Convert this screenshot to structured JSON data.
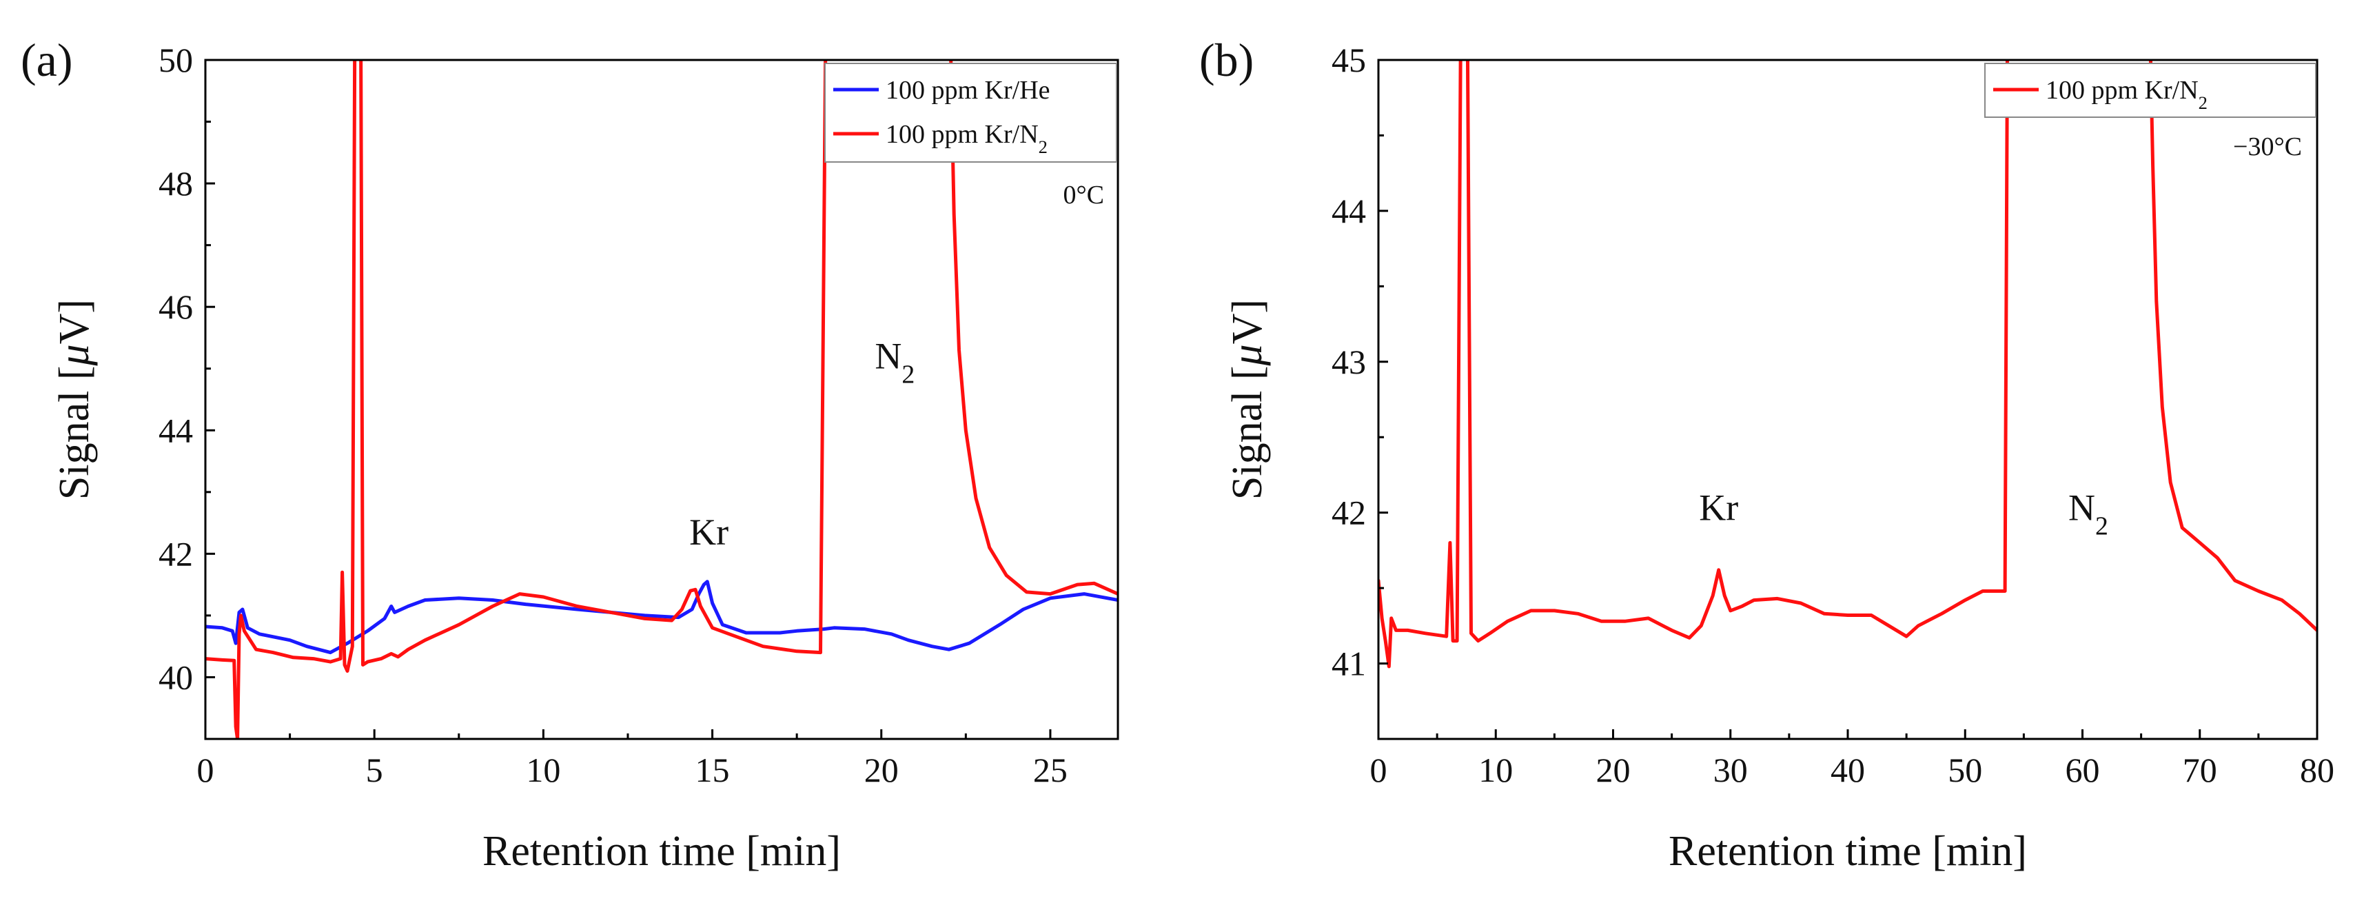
{
  "chart_data": [
    {
      "type": "line",
      "panel_label": "(a)",
      "xlabel": "Retention time [min]",
      "ylabel_prefix": "Signal [",
      "ylabel_mu": "μ",
      "ylabel_suffix": "V]",
      "xlim": [
        0,
        27
      ],
      "ylim": [
        39,
        50
      ],
      "xticks": [
        0,
        5,
        10,
        15,
        20,
        25
      ],
      "yticks": [
        40,
        42,
        44,
        46,
        48,
        50
      ],
      "condition": "0°C",
      "legend_position": "top-right",
      "series": [
        {
          "name": "100 ppm Kr/He",
          "legend_main": "100 ppm Kr/He",
          "legend_sub": "",
          "color": "#1a1aff",
          "points": [
            [
              0,
              40.82
            ],
            [
              0.5,
              40.8
            ],
            [
              0.8,
              40.75
            ],
            [
              0.9,
              40.55
            ],
            [
              1.0,
              41.05
            ],
            [
              1.1,
              41.1
            ],
            [
              1.25,
              40.8
            ],
            [
              1.6,
              40.7
            ],
            [
              2.5,
              40.6
            ],
            [
              3.0,
              40.5
            ],
            [
              3.7,
              40.4
            ],
            [
              4.2,
              40.55
            ],
            [
              4.8,
              40.75
            ],
            [
              5.3,
              40.95
            ],
            [
              5.5,
              41.15
            ],
            [
              5.6,
              41.05
            ],
            [
              6.0,
              41.15
            ],
            [
              6.5,
              41.25
            ],
            [
              7.5,
              41.28
            ],
            [
              8.5,
              41.25
            ],
            [
              9.5,
              41.18
            ],
            [
              11,
              41.1
            ],
            [
              12,
              41.05
            ],
            [
              13,
              41.0
            ],
            [
              14,
              40.97
            ],
            [
              14.4,
              41.1
            ],
            [
              14.6,
              41.35
            ],
            [
              14.75,
              41.5
            ],
            [
              14.85,
              41.55
            ],
            [
              15.0,
              41.2
            ],
            [
              15.3,
              40.85
            ],
            [
              16,
              40.72
            ],
            [
              17,
              40.72
            ],
            [
              17.5,
              40.75
            ],
            [
              18.3,
              40.78
            ],
            [
              18.6,
              40.8
            ],
            [
              19.5,
              40.78
            ],
            [
              20.3,
              40.7
            ],
            [
              20.8,
              40.6
            ],
            [
              21.5,
              40.5
            ],
            [
              22.0,
              40.45
            ],
            [
              22.6,
              40.55
            ],
            [
              23.5,
              40.85
            ],
            [
              24.2,
              41.1
            ],
            [
              25,
              41.28
            ],
            [
              26,
              41.35
            ],
            [
              27,
              41.25
            ]
          ]
        },
        {
          "name": "100 ppm Kr/N2",
          "legend_main": "100 ppm Kr/N",
          "legend_sub": "2",
          "color": "#ff1010",
          "points": [
            [
              0,
              40.3
            ],
            [
              0.5,
              40.28
            ],
            [
              0.85,
              40.27
            ],
            [
              0.9,
              39.2
            ],
            [
              0.95,
              39.0
            ],
            [
              1.0,
              40.7
            ],
            [
              1.05,
              41.0
            ],
            [
              1.15,
              40.75
            ],
            [
              1.5,
              40.45
            ],
            [
              2.0,
              40.4
            ],
            [
              2.6,
              40.32
            ],
            [
              3.2,
              40.3
            ],
            [
              3.7,
              40.25
            ],
            [
              4.0,
              40.3
            ],
            [
              4.05,
              41.7
            ],
            [
              4.12,
              40.2
            ],
            [
              4.2,
              40.1
            ],
            [
              4.35,
              40.5
            ],
            [
              4.42,
              50.2
            ],
            [
              4.6,
              50.2
            ],
            [
              4.66,
              40.2
            ],
            [
              4.8,
              40.25
            ],
            [
              5.2,
              40.3
            ],
            [
              5.5,
              40.38
            ],
            [
              5.7,
              40.33
            ],
            [
              6.0,
              40.45
            ],
            [
              6.5,
              40.6
            ],
            [
              7.5,
              40.85
            ],
            [
              8.5,
              41.15
            ],
            [
              9.3,
              41.35
            ],
            [
              10,
              41.3
            ],
            [
              11,
              41.15
            ],
            [
              12,
              41.05
            ],
            [
              13,
              40.95
            ],
            [
              13.8,
              40.92
            ],
            [
              14.1,
              41.1
            ],
            [
              14.35,
              41.4
            ],
            [
              14.5,
              41.42
            ],
            [
              14.65,
              41.15
            ],
            [
              15,
              40.8
            ],
            [
              15.5,
              40.7
            ],
            [
              16.5,
              40.5
            ],
            [
              17.5,
              40.42
            ],
            [
              18.2,
              40.4
            ],
            [
              18.35,
              50.2
            ],
            [
              22.05,
              50.2
            ],
            [
              22.15,
              47.5
            ],
            [
              22.3,
              45.3
            ],
            [
              22.5,
              44.0
            ],
            [
              22.8,
              42.9
            ],
            [
              23.2,
              42.1
            ],
            [
              23.7,
              41.65
            ],
            [
              24.3,
              41.38
            ],
            [
              25,
              41.35
            ],
            [
              25.8,
              41.5
            ],
            [
              26.3,
              41.52
            ],
            [
              27,
              41.35
            ]
          ]
        }
      ],
      "annotations": [
        {
          "text": "Kr",
          "sub": "",
          "x": 14.9,
          "y": 42.15
        },
        {
          "text": "N",
          "sub": "2",
          "x": 20.4,
          "y": 45.0
        }
      ]
    },
    {
      "type": "line",
      "panel_label": "(b)",
      "xlabel": "Retention time [min]",
      "ylabel_prefix": "Signal [",
      "ylabel_mu": "μ",
      "ylabel_suffix": "V]",
      "xlim": [
        0,
        80
      ],
      "ylim": [
        40.5,
        45
      ],
      "xticks": [
        0,
        10,
        20,
        30,
        40,
        50,
        60,
        70,
        80
      ],
      "yticks": [
        41,
        42,
        43,
        44,
        45
      ],
      "condition": "−30°C",
      "legend_position": "top-right",
      "series": [
        {
          "name": "100 ppm Kr/N2",
          "legend_main": "100 ppm Kr/N",
          "legend_sub": "2",
          "color": "#ff1010",
          "points": [
            [
              0,
              41.55
            ],
            [
              0.3,
              41.3
            ],
            [
              0.6,
              41.15
            ],
            [
              0.9,
              40.98
            ],
            [
              1.1,
              41.3
            ],
            [
              1.5,
              41.22
            ],
            [
              2.5,
              41.22
            ],
            [
              4,
              41.2
            ],
            [
              5.8,
              41.18
            ],
            [
              6.1,
              41.8
            ],
            [
              6.35,
              41.15
            ],
            [
              6.7,
              41.15
            ],
            [
              7.0,
              45.05
            ],
            [
              7.6,
              45.05
            ],
            [
              7.9,
              41.2
            ],
            [
              8.5,
              41.15
            ],
            [
              9.5,
              41.2
            ],
            [
              11,
              41.28
            ],
            [
              13,
              41.35
            ],
            [
              15,
              41.35
            ],
            [
              17,
              41.33
            ],
            [
              19,
              41.28
            ],
            [
              21,
              41.28
            ],
            [
              23,
              41.3
            ],
            [
              25,
              41.22
            ],
            [
              26.5,
              41.17
            ],
            [
              27.5,
              41.25
            ],
            [
              28.5,
              41.45
            ],
            [
              29.0,
              41.62
            ],
            [
              29.5,
              41.45
            ],
            [
              30,
              41.35
            ],
            [
              31,
              41.38
            ],
            [
              32,
              41.42
            ],
            [
              34,
              41.43
            ],
            [
              36,
              41.4
            ],
            [
              38,
              41.33
            ],
            [
              40,
              41.32
            ],
            [
              42,
              41.32
            ],
            [
              43.5,
              41.25
            ],
            [
              45,
              41.18
            ],
            [
              46,
              41.25
            ],
            [
              48,
              41.33
            ],
            [
              50,
              41.42
            ],
            [
              51.5,
              41.48
            ],
            [
              53.4,
              41.48
            ],
            [
              53.6,
              45.05
            ],
            [
              65.8,
              45.05
            ],
            [
              66.0,
              44.3
            ],
            [
              66.3,
              43.4
            ],
            [
              66.8,
              42.7
            ],
            [
              67.5,
              42.2
            ],
            [
              68.5,
              41.9
            ],
            [
              70,
              41.8
            ],
            [
              71.5,
              41.7
            ],
            [
              73,
              41.55
            ],
            [
              75,
              41.48
            ],
            [
              77,
              41.42
            ],
            [
              78.5,
              41.33
            ],
            [
              80,
              41.22
            ]
          ]
        }
      ],
      "annotations": [
        {
          "text": "Kr",
          "sub": "",
          "x": 29,
          "y": 41.95
        },
        {
          "text": "N",
          "sub": "2",
          "x": 60.5,
          "y": 41.95
        }
      ]
    }
  ]
}
